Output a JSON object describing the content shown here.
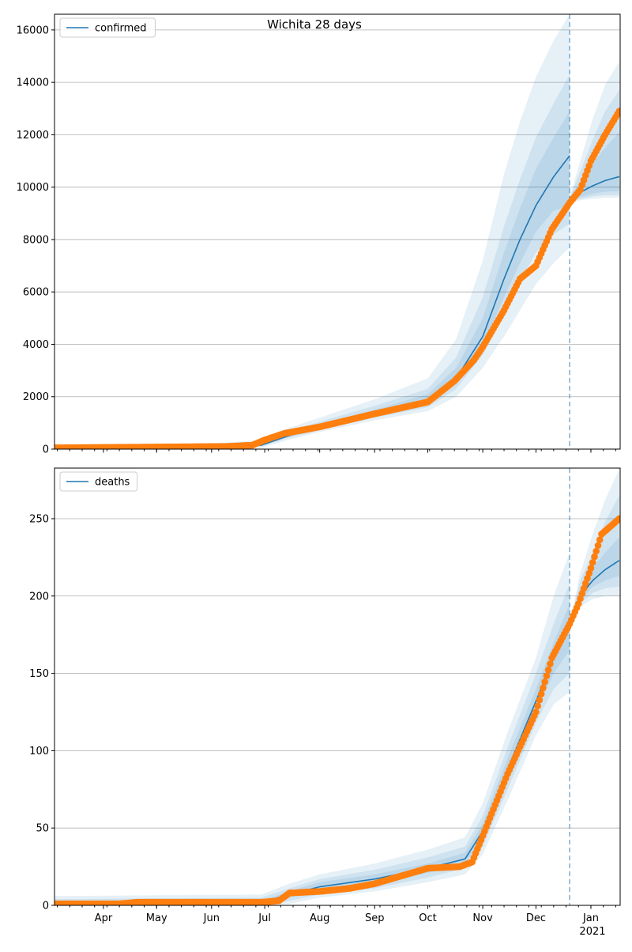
{
  "chart_data": [
    {
      "type": "line",
      "title": "Wichita 28 days",
      "legend": {
        "label": "confirmed",
        "placement": "top-left"
      },
      "x_unit": "days since 2020-03-01",
      "xlim": [
        3.4,
        322.5
      ],
      "ylim": [
        0,
        16600
      ],
      "yticks": [
        0,
        2000,
        4000,
        6000,
        8000,
        10000,
        12000,
        14000,
        16000
      ],
      "grid": "y",
      "forecast_start": 294,
      "observed": [
        [
          3,
          50
        ],
        [
          60,
          80
        ],
        [
          100,
          100
        ],
        [
          115,
          150
        ],
        [
          122,
          350
        ],
        [
          133,
          600
        ],
        [
          153,
          850
        ],
        [
          184,
          1350
        ],
        [
          214,
          1800
        ],
        [
          229,
          2600
        ],
        [
          240,
          3400
        ],
        [
          245,
          3900
        ],
        [
          257,
          5300
        ],
        [
          266,
          6500
        ],
        [
          275,
          7000
        ],
        [
          284,
          8400
        ],
        [
          294,
          9400
        ],
        [
          300,
          9900
        ],
        [
          306,
          11000
        ],
        [
          314,
          12000
        ],
        [
          322,
          12900
        ]
      ],
      "fit": {
        "x": [
          3,
          60,
          100,
          120,
          135,
          153,
          184,
          214,
          230,
          245,
          257,
          266,
          275,
          285,
          294
        ],
        "median": [
          50,
          80,
          100,
          150,
          500,
          850,
          1350,
          1800,
          2700,
          4300,
          6500,
          8000,
          9300,
          10400,
          11200
        ],
        "bands": [
          {
            "lo": [
              0,
              0,
              0,
              50,
              350,
              650,
              1100,
              1450,
              2000,
              3100,
              4300,
              5300,
              6300,
              7100,
              7700
            ],
            "hi": [
              150,
              200,
              250,
              350,
              800,
              1200,
              1900,
              2700,
              4200,
              7200,
              10500,
              12500,
              14200,
              15600,
              16600
            ]
          },
          {
            "lo": [
              20,
              40,
              60,
              100,
              420,
              720,
              1200,
              1600,
              2300,
              3600,
              5200,
              6400,
              7500,
              8200,
              8600
            ],
            "hi": [
              100,
              150,
              180,
              250,
              650,
              1050,
              1650,
              2300,
              3500,
              5800,
              8500,
              10300,
              11900,
              13200,
              14300
            ]
          },
          {
            "lo": [
              30,
              60,
              80,
              120,
              460,
              780,
              1270,
              1700,
              2500,
              3900,
              5800,
              7100,
              8300,
              9100,
              9300
            ],
            "hi": [
              80,
              110,
              130,
              200,
              580,
              950,
              1500,
              2100,
              3100,
              5000,
              7500,
              9200,
              10700,
              11900,
              12900
            ]
          }
        ]
      },
      "forecast": {
        "x": [
          294,
          300,
          307,
          314,
          322
        ],
        "median": [
          9600,
          9800,
          10050,
          10250,
          10400
        ],
        "bands": [
          {
            "lo": [
              9400,
              9500,
              9550,
              9600,
              9600
            ],
            "hi": [
              9600,
              11000,
              12600,
              13900,
              14800
            ]
          },
          {
            "lo": [
              9450,
              9550,
              9650,
              9700,
              9700
            ],
            "hi": [
              9600,
              10600,
              11800,
              12900,
              13700
            ]
          },
          {
            "lo": [
              9500,
              9620,
              9750,
              9820,
              9850
            ],
            "hi": [
              9600,
              10200,
              10900,
              11500,
              12100
            ]
          }
        ]
      }
    },
    {
      "type": "line",
      "legend": {
        "label": "deaths",
        "placement": "top-left"
      },
      "x_unit": "days since 2020-03-01",
      "xlim": [
        3.4,
        322.5
      ],
      "ylim": [
        0,
        282.7
      ],
      "yticks": [
        0,
        50,
        100,
        150,
        200,
        250
      ],
      "grid": "y",
      "forecast_start": 294,
      "xticks": [
        {
          "x": 31,
          "label": "Apr"
        },
        {
          "x": 61,
          "label": "May"
        },
        {
          "x": 92,
          "label": "Jun"
        },
        {
          "x": 122,
          "label": "Jul"
        },
        {
          "x": 153,
          "label": "Aug"
        },
        {
          "x": 184,
          "label": "Sep"
        },
        {
          "x": 214,
          "label": "Oct"
        },
        {
          "x": 245,
          "label": "Nov"
        },
        {
          "x": 275,
          "label": "Dec"
        },
        {
          "x": 306,
          "label": "Jan",
          "sublabel": "2021"
        }
      ],
      "observed": [
        [
          3,
          1
        ],
        [
          40,
          1
        ],
        [
          50,
          2
        ],
        [
          120,
          2
        ],
        [
          130,
          3
        ],
        [
          136,
          8
        ],
        [
          153,
          9
        ],
        [
          170,
          11
        ],
        [
          184,
          14
        ],
        [
          214,
          24
        ],
        [
          232,
          25
        ],
        [
          239,
          28
        ],
        [
          245,
          45
        ],
        [
          259,
          85
        ],
        [
          275,
          125
        ],
        [
          284,
          160
        ],
        [
          294,
          182
        ],
        [
          299,
          195
        ],
        [
          306,
          218
        ],
        [
          312,
          240
        ],
        [
          322,
          250
        ]
      ],
      "fit": {
        "x": [
          3,
          120,
          136,
          153,
          184,
          214,
          235,
          245,
          259,
          275,
          285,
          294
        ],
        "median": [
          1,
          2,
          7,
          12,
          17,
          24,
          30,
          48,
          88,
          132,
          160,
          182
        ],
        "bands": [
          {
            "lo": [
              0,
              0,
              1,
              5,
              9,
              15,
              20,
              33,
              68,
              110,
              130,
              138
            ],
            "hi": [
              6,
              7,
              14,
              20,
              27,
              36,
              44,
              66,
              112,
              160,
              200,
              228
            ]
          },
          {
            "lo": [
              0,
              0,
              3,
              7,
              11,
              18,
              24,
              38,
              75,
              118,
              140,
              150
            ],
            "hi": [
              4,
              5,
              11,
              17,
              23,
              31,
              38,
              58,
              102,
              150,
              182,
              208
            ]
          },
          {
            "lo": [
              0,
              1,
              5,
              9,
              14,
              21,
              27,
              43,
              82,
              125,
              150,
              165
            ],
            "hi": [
              2,
              3,
              9,
              15,
              20,
              27,
              34,
              53,
              95,
              140,
              170,
              195
            ]
          }
        ]
      },
      "forecast": {
        "x": [
          294,
          300,
          307,
          314,
          322
        ],
        "median": [
          182,
          200,
          210,
          217,
          223
        ],
        "bands": [
          {
            "lo": [
              180,
              193,
              198,
              200,
              200
            ],
            "hi": [
              182,
              215,
              240,
              262,
              282
            ]
          },
          {
            "lo": [
              180,
              195,
              202,
              205,
              206
            ],
            "hi": [
              182,
              210,
              228,
              248,
              265
            ]
          },
          {
            "lo": [
              181,
              197,
              206,
              210,
              213
            ],
            "hi": [
              182,
              205,
              218,
              228,
              238
            ]
          }
        ]
      }
    }
  ],
  "colors": {
    "fit": "#1f77b4",
    "observed": "#ff7f0e",
    "grid": "#b0b0b0"
  }
}
